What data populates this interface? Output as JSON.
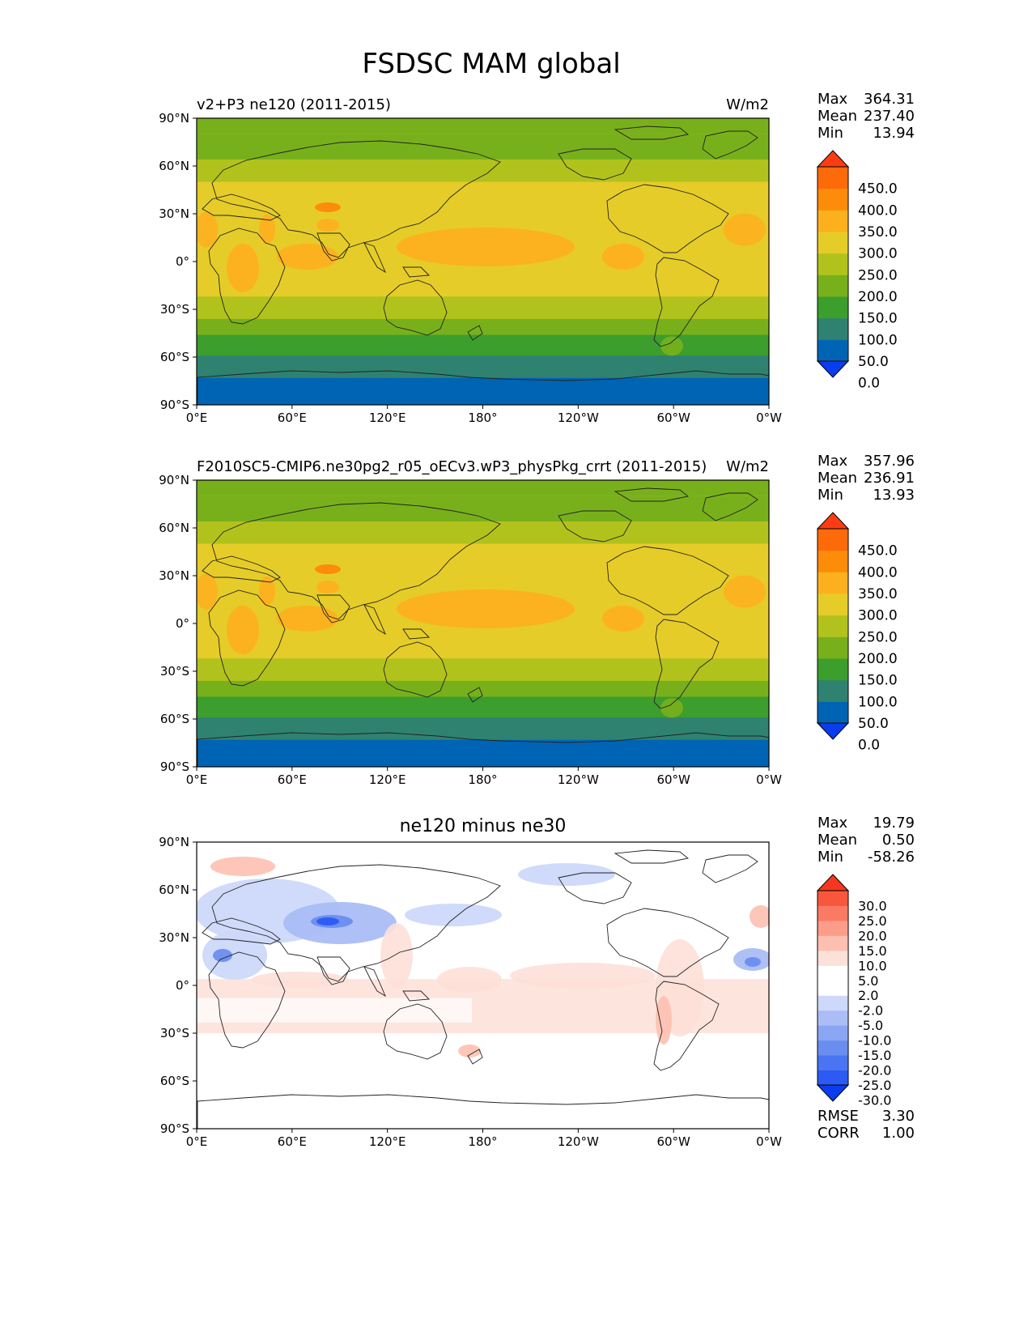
{
  "chart_data": {
    "type": "heatmap",
    "title": "FSDSC MAM global",
    "xticks": [
      "0°E",
      "60°E",
      "120°E",
      "180°",
      "120°W",
      "60°W",
      "0°W"
    ],
    "yticks": [
      "90°N",
      "60°N",
      "30°N",
      "0°",
      "30°S",
      "60°S",
      "90°S"
    ],
    "panels": [
      {
        "title_left": "v2+P3 ne120 (2011-2015)",
        "title_right": "W/m2",
        "stats": [
          {
            "label": "Max",
            "value": "364.31"
          },
          {
            "label": "Mean",
            "value": "237.40"
          },
          {
            "label": "Min",
            "value": "13.94"
          }
        ],
        "colorbar": {
          "labels": [
            "450.0",
            "400.0",
            "350.0",
            "300.0",
            "250.0",
            "200.0",
            "150.0",
            "100.0",
            "50.0",
            "0.0"
          ],
          "colors": [
            "#0a3cf0",
            "#0064b4",
            "#2f8270",
            "#3c9e2c",
            "#78b01c",
            "#b2c21c",
            "#e6cc28",
            "#fdb01e",
            "#fc8c0a",
            "#fd6a0a",
            "#fd3c14"
          ]
        },
        "zonal_bands": [
          {
            "lat_from": 90,
            "lat_to": 80,
            "band": 4
          },
          {
            "lat_from": 80,
            "lat_to": 64,
            "band": 4
          },
          {
            "lat_from": 64,
            "lat_to": 50,
            "band": 5
          },
          {
            "lat_from": 50,
            "lat_to": 28,
            "band": 6
          },
          {
            "lat_from": 28,
            "lat_to": -22,
            "band": 6
          },
          {
            "lat_from": -22,
            "lat_to": -36,
            "band": 5
          },
          {
            "lat_from": -36,
            "lat_to": -46,
            "band": 4
          },
          {
            "lat_from": -46,
            "lat_to": -59,
            "band": 3
          },
          {
            "lat_from": -59,
            "lat_to": -73,
            "band": 2
          },
          {
            "lat_from": -73,
            "lat_to": -90,
            "band": 1
          }
        ]
      },
      {
        "title_left": "F2010SC5-CMIP6.ne30pg2_r05_oECv3.wP3_physPkg_crrt (2011-2015)",
        "title_right": "W/m2",
        "stats": [
          {
            "label": "Max",
            "value": "357.96"
          },
          {
            "label": "Mean",
            "value": "236.91"
          },
          {
            "label": "Min",
            "value": "13.93"
          }
        ],
        "colorbar": {
          "labels": [
            "450.0",
            "400.0",
            "350.0",
            "300.0",
            "250.0",
            "200.0",
            "150.0",
            "100.0",
            "50.0",
            "0.0"
          ],
          "colors": [
            "#0a3cf0",
            "#0064b4",
            "#2f8270",
            "#3c9e2c",
            "#78b01c",
            "#b2c21c",
            "#e6cc28",
            "#fdb01e",
            "#fc8c0a",
            "#fd6a0a",
            "#fd3c14"
          ]
        },
        "zonal_bands": [
          {
            "lat_from": 90,
            "lat_to": 80,
            "band": 4
          },
          {
            "lat_from": 80,
            "lat_to": 64,
            "band": 4
          },
          {
            "lat_from": 64,
            "lat_to": 50,
            "band": 5
          },
          {
            "lat_from": 50,
            "lat_to": 28,
            "band": 6
          },
          {
            "lat_from": 28,
            "lat_to": -22,
            "band": 6
          },
          {
            "lat_from": -22,
            "lat_to": -36,
            "band": 5
          },
          {
            "lat_from": -36,
            "lat_to": -46,
            "band": 4
          },
          {
            "lat_from": -46,
            "lat_to": -59,
            "band": 3
          },
          {
            "lat_from": -59,
            "lat_to": -73,
            "band": 2
          },
          {
            "lat_from": -73,
            "lat_to": -90,
            "band": 1
          }
        ]
      },
      {
        "title_center": "ne120 minus ne30",
        "stats": [
          {
            "label": "Max",
            "value": "19.79"
          },
          {
            "label": "Mean",
            "value": "0.50"
          },
          {
            "label": "Min",
            "value": "-58.26"
          }
        ],
        "colorbar": {
          "labels": [
            "30.0",
            "25.0",
            "20.0",
            "15.0",
            "10.0",
            "5.0",
            "2.0",
            "-2.0",
            "-5.0",
            "-10.0",
            "-15.0",
            "-20.0",
            "-25.0",
            "-30.0"
          ],
          "colors": [
            "#0a3cf0",
            "#2c5af5",
            "#4a74f2",
            "#6a8ef0",
            "#8aa6f2",
            "#aabdf5",
            "#cdd8fa",
            "#ffffff",
            "#ffffff",
            "#fde0d8",
            "#fdc0b0",
            "#fc9d8a",
            "#fb7a64",
            "#f8573e",
            "#f6361e"
          ]
        },
        "metrics": [
          {
            "label": "RMSE",
            "value": "3.30"
          },
          {
            "label": "CORR",
            "value": "1.00"
          }
        ]
      }
    ]
  }
}
